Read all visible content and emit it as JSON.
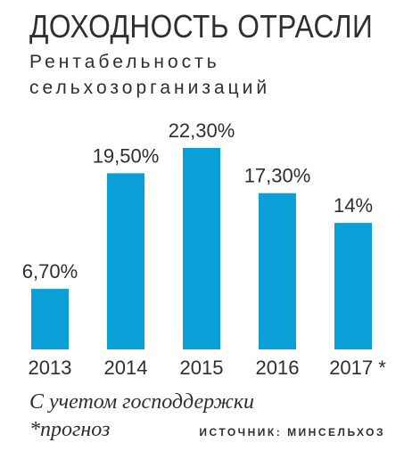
{
  "header": {
    "title": "ДОХОДНОСТЬ ОТРАСЛИ",
    "subtitle_line1": "Рентабельность",
    "subtitle_line2": "сельхозорганизаций"
  },
  "colors": {
    "bar": "#0a9fd6",
    "text": "#2f2f2f",
    "background": "#ffffff"
  },
  "chart_data": {
    "type": "bar",
    "categories": [
      "2013",
      "2014",
      "2015",
      "2016",
      "2017 *"
    ],
    "values": [
      6.7,
      19.5,
      22.3,
      17.3,
      14
    ],
    "data_labels": [
      "6,70%",
      "19,50%",
      "22,30%",
      "17,30%",
      "14%"
    ],
    "unit": "%",
    "ylim": [
      0,
      22.3
    ],
    "grid": false,
    "legend": "none"
  },
  "footer": {
    "note_line1": "С учетом господдержки",
    "note_line2": "*прогноз",
    "source": "ИСТОЧНИК: МИНСЕЛЬХОЗ"
  }
}
